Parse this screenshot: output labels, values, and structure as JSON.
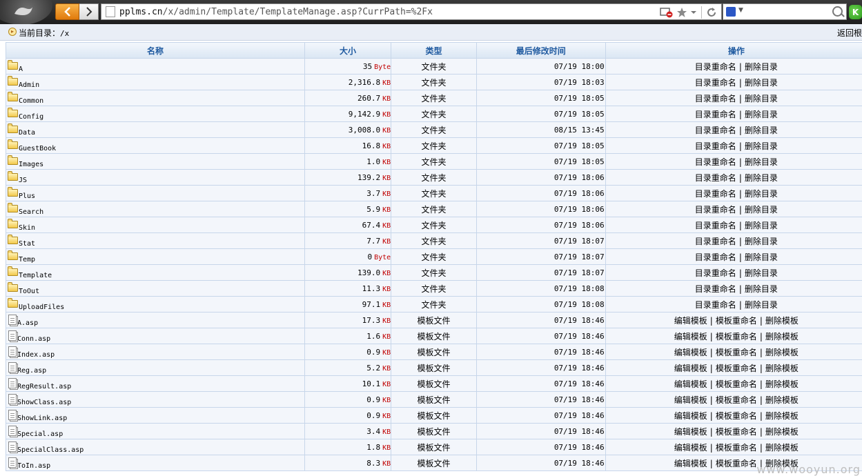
{
  "browser": {
    "url_host": "pplms.cn",
    "url_path": "/x/admin/Template/TemplateManage.asp?CurrPath=%2Fx",
    "extension_label": "K",
    "icons": [
      "back-icon",
      "forward-icon",
      "page-icon",
      "blocked-icon",
      "star-icon",
      "dropdown-icon",
      "refresh-icon",
      "search-engine-icon",
      "search-icon"
    ]
  },
  "pathbar": {
    "label": "当前目录：",
    "value": "/x",
    "return_label": "返回根"
  },
  "table": {
    "headers": {
      "name": "名称",
      "size": "大小",
      "type": "类型",
      "modified": "最后修改时间",
      "ops": "操作"
    },
    "rows": [
      {
        "kind": "folder",
        "name": "A",
        "size": "35",
        "unit": "Byte",
        "type": "文件夹",
        "modified": "07/19 18:00",
        "ops": [
          "目录重命名",
          "删除目录"
        ]
      },
      {
        "kind": "folder",
        "name": "Admin",
        "size": "2,316.8",
        "unit": "KB",
        "type": "文件夹",
        "modified": "07/19 18:03",
        "ops": [
          "目录重命名",
          "删除目录"
        ]
      },
      {
        "kind": "folder",
        "name": "Common",
        "size": "260.7",
        "unit": "KB",
        "type": "文件夹",
        "modified": "07/19 18:05",
        "ops": [
          "目录重命名",
          "删除目录"
        ]
      },
      {
        "kind": "folder",
        "name": "Config",
        "size": "9,142.9",
        "unit": "KB",
        "type": "文件夹",
        "modified": "07/19 18:05",
        "ops": [
          "目录重命名",
          "删除目录"
        ]
      },
      {
        "kind": "folder",
        "name": "Data",
        "size": "3,008.0",
        "unit": "KB",
        "type": "文件夹",
        "modified": "08/15 13:45",
        "ops": [
          "目录重命名",
          "删除目录"
        ]
      },
      {
        "kind": "folder",
        "name": "GuestBook",
        "size": "16.8",
        "unit": "KB",
        "type": "文件夹",
        "modified": "07/19 18:05",
        "ops": [
          "目录重命名",
          "删除目录"
        ]
      },
      {
        "kind": "folder",
        "name": "Images",
        "size": "1.0",
        "unit": "KB",
        "type": "文件夹",
        "modified": "07/19 18:05",
        "ops": [
          "目录重命名",
          "删除目录"
        ]
      },
      {
        "kind": "folder",
        "name": "JS",
        "size": "139.2",
        "unit": "KB",
        "type": "文件夹",
        "modified": "07/19 18:06",
        "ops": [
          "目录重命名",
          "删除目录"
        ]
      },
      {
        "kind": "folder",
        "name": "Plus",
        "size": "3.7",
        "unit": "KB",
        "type": "文件夹",
        "modified": "07/19 18:06",
        "ops": [
          "目录重命名",
          "删除目录"
        ]
      },
      {
        "kind": "folder",
        "name": "Search",
        "size": "5.9",
        "unit": "KB",
        "type": "文件夹",
        "modified": "07/19 18:06",
        "ops": [
          "目录重命名",
          "删除目录"
        ]
      },
      {
        "kind": "folder",
        "name": "Skin",
        "size": "67.4",
        "unit": "KB",
        "type": "文件夹",
        "modified": "07/19 18:06",
        "ops": [
          "目录重命名",
          "删除目录"
        ]
      },
      {
        "kind": "folder",
        "name": "Stat",
        "size": "7.7",
        "unit": "KB",
        "type": "文件夹",
        "modified": "07/19 18:07",
        "ops": [
          "目录重命名",
          "删除目录"
        ]
      },
      {
        "kind": "folder",
        "name": "Temp",
        "size": "0",
        "unit": "Byte",
        "type": "文件夹",
        "modified": "07/19 18:07",
        "ops": [
          "目录重命名",
          "删除目录"
        ]
      },
      {
        "kind": "folder",
        "name": "Template",
        "size": "139.0",
        "unit": "KB",
        "type": "文件夹",
        "modified": "07/19 18:07",
        "ops": [
          "目录重命名",
          "删除目录"
        ]
      },
      {
        "kind": "folder",
        "name": "ToOut",
        "size": "11.3",
        "unit": "KB",
        "type": "文件夹",
        "modified": "07/19 18:08",
        "ops": [
          "目录重命名",
          "删除目录"
        ]
      },
      {
        "kind": "folder",
        "name": "UploadFiles",
        "size": "97.1",
        "unit": "KB",
        "type": "文件夹",
        "modified": "07/19 18:08",
        "ops": [
          "目录重命名",
          "删除目录"
        ]
      },
      {
        "kind": "file",
        "name": "A.asp",
        "size": "17.3",
        "unit": "KB",
        "type": "模板文件",
        "modified": "07/19 18:46",
        "ops": [
          "编辑模板",
          "模板重命名",
          "删除模板"
        ]
      },
      {
        "kind": "file",
        "name": "Conn.asp",
        "size": "1.6",
        "unit": "KB",
        "type": "模板文件",
        "modified": "07/19 18:46",
        "ops": [
          "编辑模板",
          "模板重命名",
          "删除模板"
        ]
      },
      {
        "kind": "file",
        "name": "Index.asp",
        "size": "0.9",
        "unit": "KB",
        "type": "模板文件",
        "modified": "07/19 18:46",
        "ops": [
          "编辑模板",
          "模板重命名",
          "删除模板"
        ]
      },
      {
        "kind": "file",
        "name": "Reg.asp",
        "size": "5.2",
        "unit": "KB",
        "type": "模板文件",
        "modified": "07/19 18:46",
        "ops": [
          "编辑模板",
          "模板重命名",
          "删除模板"
        ]
      },
      {
        "kind": "file",
        "name": "RegResult.asp",
        "size": "10.1",
        "unit": "KB",
        "type": "模板文件",
        "modified": "07/19 18:46",
        "ops": [
          "编辑模板",
          "模板重命名",
          "删除模板"
        ]
      },
      {
        "kind": "file",
        "name": "ShowClass.asp",
        "size": "0.9",
        "unit": "KB",
        "type": "模板文件",
        "modified": "07/19 18:46",
        "ops": [
          "编辑模板",
          "模板重命名",
          "删除模板"
        ]
      },
      {
        "kind": "file",
        "name": "ShowLink.asp",
        "size": "0.9",
        "unit": "KB",
        "type": "模板文件",
        "modified": "07/19 18:46",
        "ops": [
          "编辑模板",
          "模板重命名",
          "删除模板"
        ]
      },
      {
        "kind": "file",
        "name": "Special.asp",
        "size": "3.4",
        "unit": "KB",
        "type": "模板文件",
        "modified": "07/19 18:46",
        "ops": [
          "编辑模板",
          "模板重命名",
          "删除模板"
        ]
      },
      {
        "kind": "file",
        "name": "SpecialClass.asp",
        "size": "1.8",
        "unit": "KB",
        "type": "模板文件",
        "modified": "07/19 18:46",
        "ops": [
          "编辑模板",
          "模板重命名",
          "删除模板"
        ]
      },
      {
        "kind": "file",
        "name": "ToIn.asp",
        "size": "8.3",
        "unit": "KB",
        "type": "模板文件",
        "modified": "07/19 18:46",
        "ops": [
          "编辑模板",
          "模板重命名",
          "删除模板"
        ]
      }
    ]
  },
  "watermark": "www.wooyun.org",
  "colors": {
    "header_text": "#1f5aa0",
    "unit_red": "#c00000",
    "row_bg": "#f3f6fb",
    "grid": "#c7d6ea",
    "back_button": "#f0951e"
  }
}
